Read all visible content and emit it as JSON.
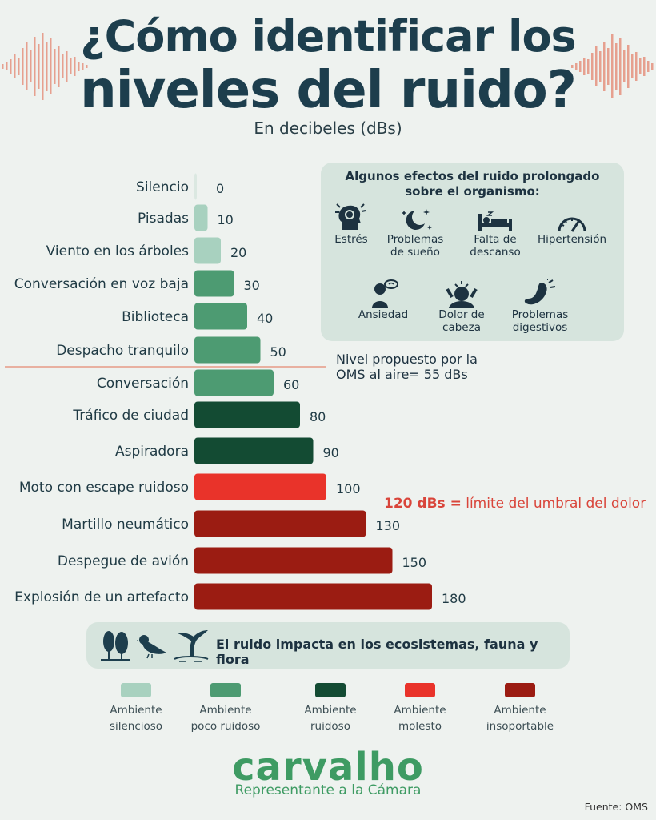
{
  "title_line1": "¿Cómo identificar los",
  "title_line2": "niveles del ruido?",
  "subtitle": "En decibeles (dBs)",
  "colors": {
    "silencioso": "#a8d1bf",
    "poco_ruidoso": "#4d9b72",
    "ruidoso": "#134b33",
    "molesto": "#e9332a",
    "insoportable": "#9b1c12",
    "accent_wave": "#e6a08f"
  },
  "chart_data": {
    "type": "bar",
    "orientation": "horizontal",
    "title": "¿Cómo identificar los niveles del ruido?",
    "subtitle": "En decibeles (dBs)",
    "categories": [
      "Silencio",
      "Pisadas",
      "Viento en los árboles",
      "Conversación en voz baja",
      "Biblioteca",
      "Despacho tranquilo",
      "Conversación",
      "Tráfico de ciudad",
      "Aspiradora",
      "Moto con escape ruidoso",
      "Martillo neumático",
      "Despegue de avión",
      "Explosión de un artefacto"
    ],
    "values": [
      0,
      10,
      20,
      30,
      40,
      50,
      60,
      80,
      90,
      100,
      130,
      150,
      180
    ],
    "value_labels": [
      "0",
      "10",
      "20",
      "30",
      "40",
      "50",
      "60",
      "80",
      "90",
      "100",
      "130",
      "150",
      "180"
    ],
    "levels": [
      "silencioso",
      "silencioso",
      "silencioso",
      "poco_ruidoso",
      "poco_ruidoso",
      "poco_ruidoso",
      "poco_ruidoso",
      "ruidoso",
      "ruidoso",
      "molesto",
      "insoportable",
      "insoportable",
      "insoportable"
    ],
    "xlim": [
      0,
      180
    ],
    "reference_line": {
      "value": 55
    }
  },
  "oms_note": "Nivel propuesto por la\nOMS al aire= 55 dBs",
  "pain_note": {
    "strong": "120 dBs =",
    "text": " límite del umbral del dolor"
  },
  "effects": {
    "title": "Algunos efectos del ruido prolongado\nsobre el organismo:",
    "items": [
      {
        "label": "Estrés",
        "icon": "stress-head-icon"
      },
      {
        "label": "Problemas\nde sueño",
        "icon": "moon-stars-icon"
      },
      {
        "label": "Falta de\ndescanso",
        "icon": "bed-icon"
      },
      {
        "label": "Hipertensión",
        "icon": "gauge-icon"
      },
      {
        "label": "Ansiedad",
        "icon": "anxious-person-icon"
      },
      {
        "label": "Dolor de\ncabeza",
        "icon": "headache-icon"
      },
      {
        "label": "Problemas\ndigestivos",
        "icon": "stomach-icon"
      }
    ]
  },
  "eco_banner": {
    "text": "El ruido impacta en los ecosistemas, fauna y flora",
    "icons": [
      "trees-icon",
      "bird-icon",
      "whale-tail-icon"
    ]
  },
  "legend": [
    {
      "label": "Ambiente\nsilencioso",
      "level": "silencioso"
    },
    {
      "label": "Ambiente\npoco ruidoso",
      "level": "poco_ruidoso"
    },
    {
      "label": "Ambiente\nruidoso",
      "level": "ruidoso"
    },
    {
      "label": "Ambiente\nmolesto",
      "level": "molesto"
    },
    {
      "label": "Ambiente\ninsoportable",
      "level": "insoportable"
    }
  ],
  "brand": {
    "name": "carvalho",
    "subtitle": "Representante a la Cámara"
  },
  "source": "Fuente: OMS"
}
